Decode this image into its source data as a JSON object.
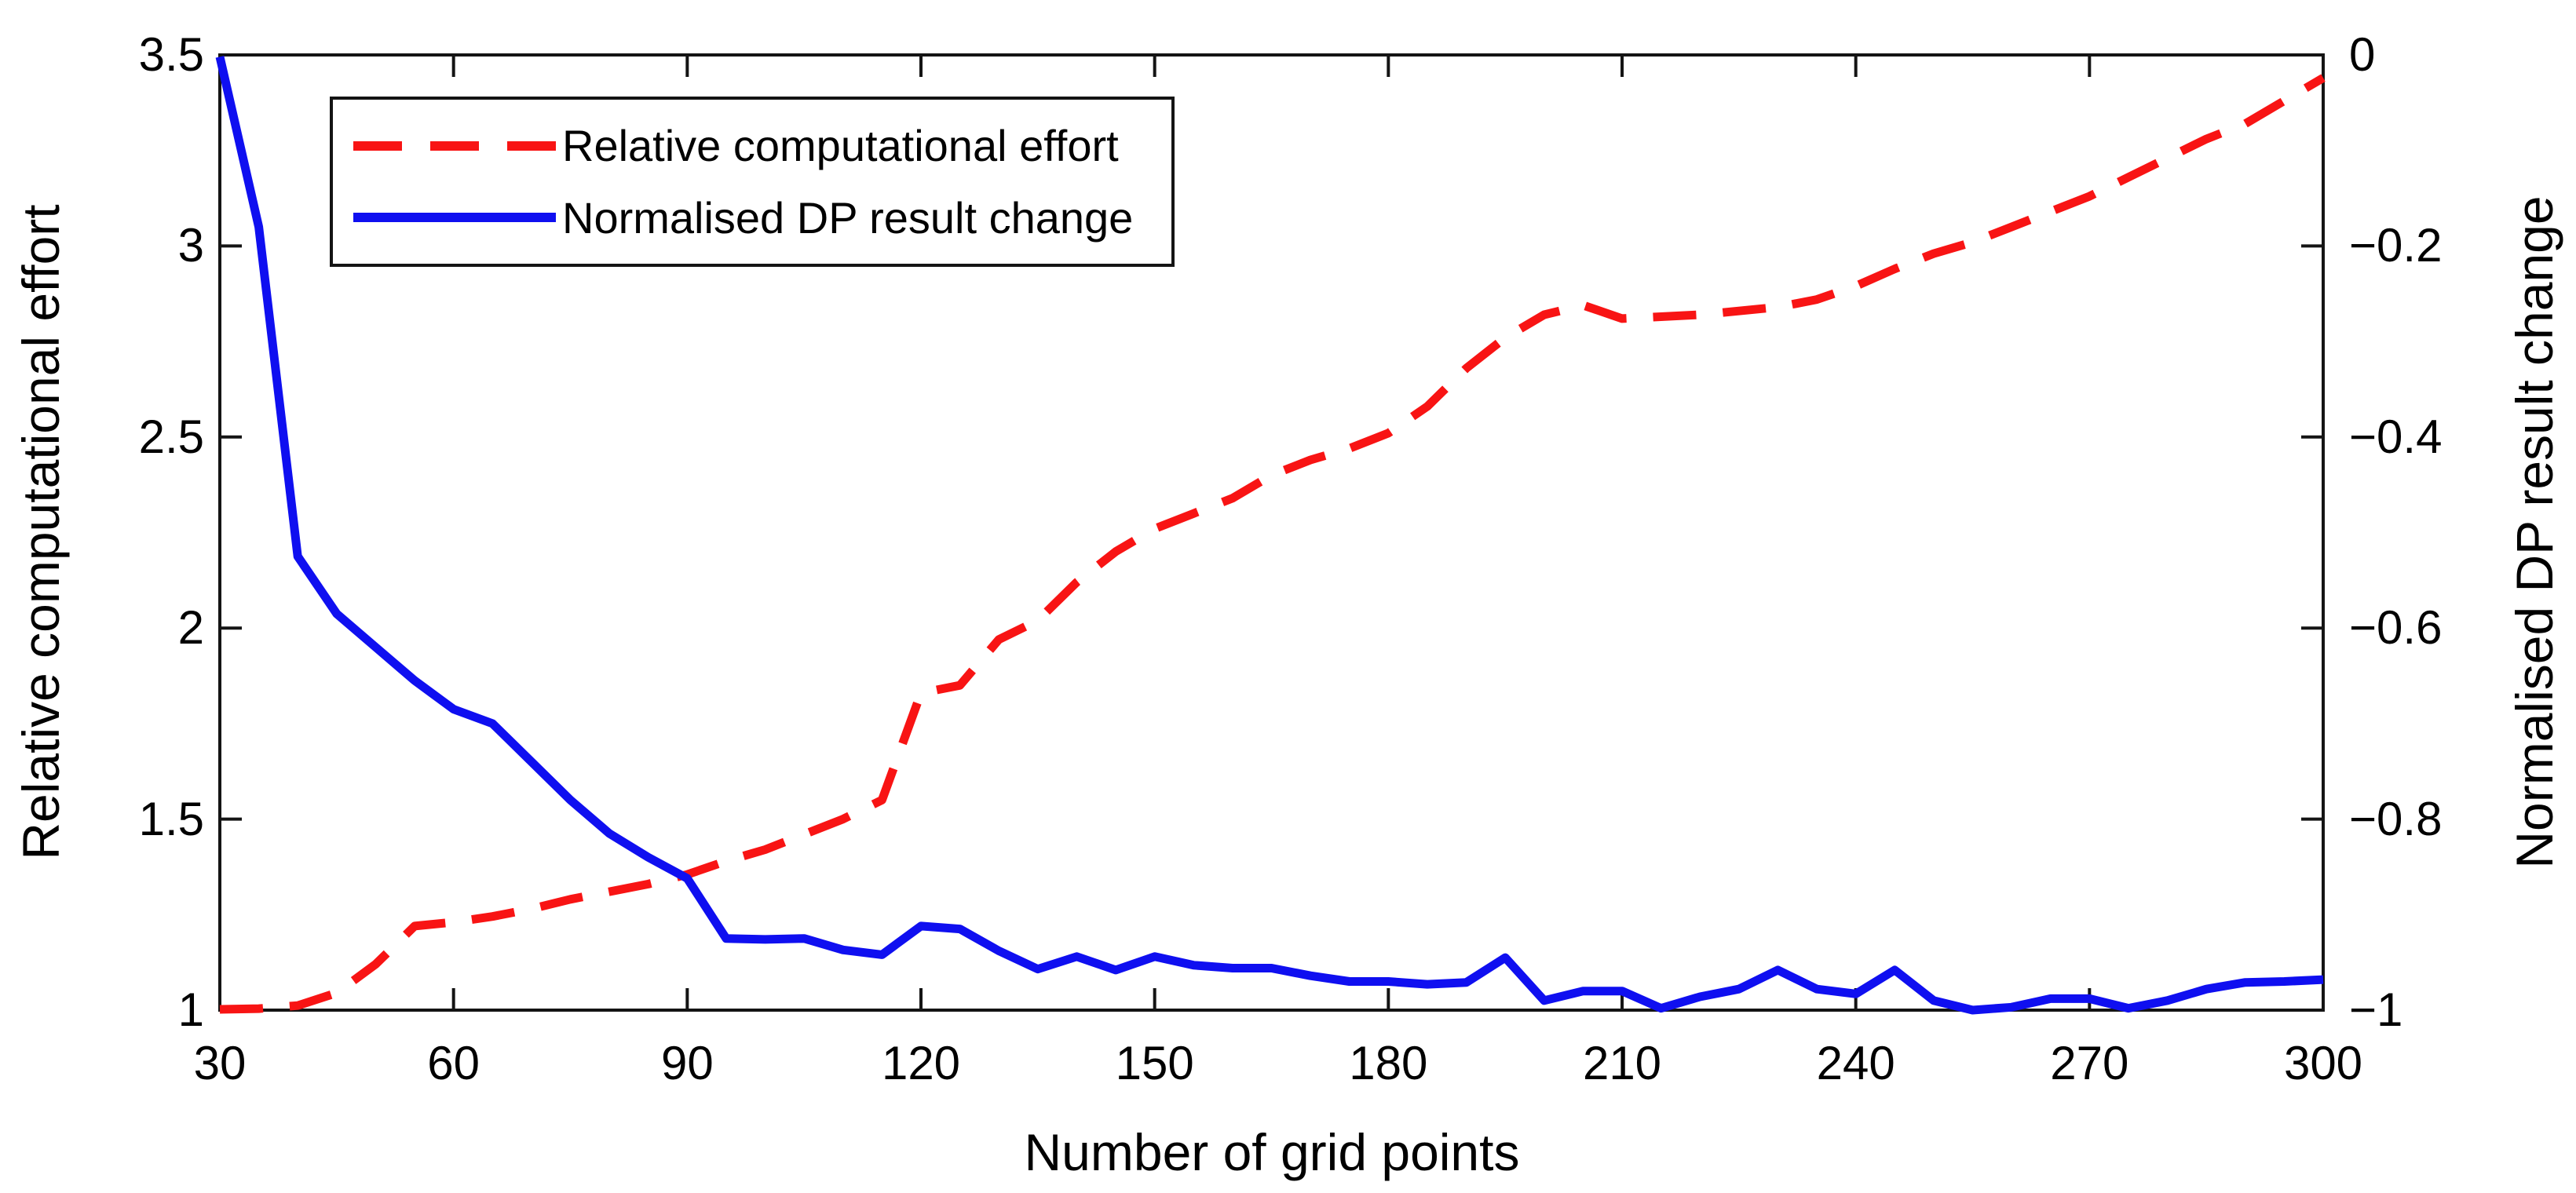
{
  "chart_data": {
    "type": "line",
    "title": "",
    "xlabel": "Number of grid points",
    "ylabel_left": "Relative computational effort",
    "ylabel_right": "Normalised DP result change",
    "x_range": [
      30,
      300
    ],
    "y_left_range": [
      1,
      3.5
    ],
    "y_right_range": [
      -1,
      0
    ],
    "x_ticks": [
      30,
      60,
      90,
      120,
      150,
      180,
      210,
      240,
      270,
      300
    ],
    "y_left_tick_labels": [
      "3.5",
      "3",
      "2.5",
      "2",
      "1.5",
      "1"
    ],
    "y_right_tick_labels": [
      "0",
      "−0.2",
      "−0.4",
      "−0.6",
      "−0.8",
      "−1"
    ],
    "grid": false,
    "legend_position": "inside-top-left",
    "x": [
      30,
      35,
      40,
      45,
      50,
      55,
      60,
      65,
      70,
      75,
      80,
      85,
      90,
      95,
      100,
      105,
      110,
      115,
      120,
      125,
      130,
      135,
      140,
      145,
      150,
      155,
      160,
      165,
      170,
      175,
      180,
      185,
      190,
      195,
      200,
      205,
      210,
      215,
      220,
      225,
      230,
      235,
      240,
      245,
      250,
      255,
      260,
      265,
      270,
      275,
      280,
      285,
      290,
      295,
      300
    ],
    "series": [
      {
        "name": "Relative computational effort",
        "axis": "left",
        "color": "#f81414",
        "style": "dashed",
        "values": [
          1.002,
          1.004,
          1.012,
          1.045,
          1.12,
          1.22,
          1.23,
          1.245,
          1.265,
          1.29,
          1.31,
          1.33,
          1.355,
          1.39,
          1.42,
          1.46,
          1.5,
          1.55,
          1.83,
          1.85,
          1.97,
          2.02,
          2.12,
          2.2,
          2.26,
          2.3,
          2.34,
          2.4,
          2.44,
          2.47,
          2.51,
          2.58,
          2.68,
          2.76,
          2.82,
          2.845,
          2.81,
          2.815,
          2.82,
          2.83,
          2.84,
          2.86,
          2.895,
          2.94,
          2.98,
          3.01,
          3.05,
          3.09,
          3.13,
          3.18,
          3.23,
          3.28,
          3.32,
          3.38,
          3.44
        ]
      },
      {
        "name": "Normalised DP result change",
        "axis": "right",
        "color": "#0f0ff0",
        "style": "solid",
        "values": [
          -0.002,
          -0.18,
          -0.525,
          -0.585,
          -0.62,
          -0.655,
          -0.685,
          -0.7,
          -0.74,
          -0.78,
          -0.815,
          -0.84,
          -0.862,
          -0.925,
          -0.926,
          -0.925,
          -0.937,
          -0.942,
          -0.912,
          -0.915,
          -0.938,
          -0.957,
          -0.944,
          -0.958,
          -0.944,
          -0.953,
          -0.956,
          -0.956,
          -0.964,
          -0.97,
          -0.97,
          -0.973,
          -0.971,
          -0.945,
          -0.99,
          -0.98,
          -0.98,
          -0.998,
          -0.986,
          -0.978,
          -0.958,
          -0.978,
          -0.983,
          -0.958,
          -0.99,
          -1.0,
          -0.997,
          -0.988,
          -0.988,
          -0.998,
          -0.99,
          -0.978,
          -0.971,
          -0.97,
          -0.968
        ]
      }
    ]
  }
}
